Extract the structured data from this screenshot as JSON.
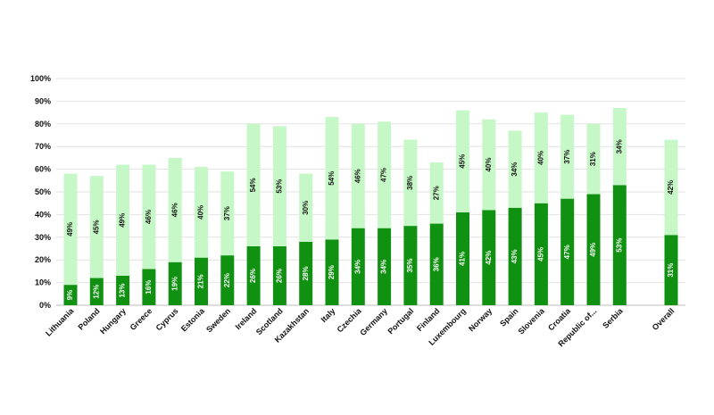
{
  "chart_data": {
    "type": "bar",
    "stacked": true,
    "ylim": [
      0,
      100
    ],
    "yticks": [
      "0%",
      "10%",
      "20%",
      "30%",
      "40%",
      "50%",
      "60%",
      "70%",
      "80%",
      "90%",
      "100%"
    ],
    "grid": true,
    "categories": [
      "Lithuania",
      "Poland",
      "Hungary",
      "Greece",
      "Cyprus",
      "Estonia",
      "Sweden",
      "Ireland",
      "Scotland",
      "Kazakhstan",
      "Italy",
      "Czechia",
      "Germany",
      "Portugal",
      "Finland",
      "Luxembourg",
      "Norway",
      "Spain",
      "Slovenia",
      "Croatia",
      "Republic of...",
      "Serbia",
      "Overall"
    ],
    "series": [
      {
        "color": "#119111",
        "values": [
          9,
          12,
          13,
          16,
          19,
          21,
          22,
          26,
          26,
          28,
          29,
          34,
          34,
          35,
          36,
          41,
          42,
          43,
          45,
          47,
          49,
          53,
          31
        ],
        "labels": [
          "9%",
          "12%",
          "13%",
          "16%",
          "19%",
          "21%",
          "22%",
          "26%",
          "26%",
          "28%",
          "29%",
          "34%",
          "34%",
          "35%",
          "36%",
          "41%",
          "42%",
          "43%",
          "45%",
          "47%",
          "49%",
          "53%",
          "31%"
        ]
      },
      {
        "color": "#c6f7c6",
        "values": [
          49,
          45,
          49,
          46,
          46,
          40,
          37,
          54,
          53,
          30,
          54,
          46,
          47,
          38,
          27,
          45,
          40,
          34,
          40,
          37,
          31,
          34,
          42
        ],
        "labels": [
          "49%",
          "45%",
          "49%",
          "46%",
          "46%",
          "40%",
          "37%",
          "54%",
          "53%",
          "30%",
          "54%",
          "46%",
          "47%",
          "38%",
          "27%",
          "45%",
          "40%",
          "34%",
          "40%",
          "37%",
          "31%",
          "34%",
          "42%"
        ]
      }
    ]
  }
}
